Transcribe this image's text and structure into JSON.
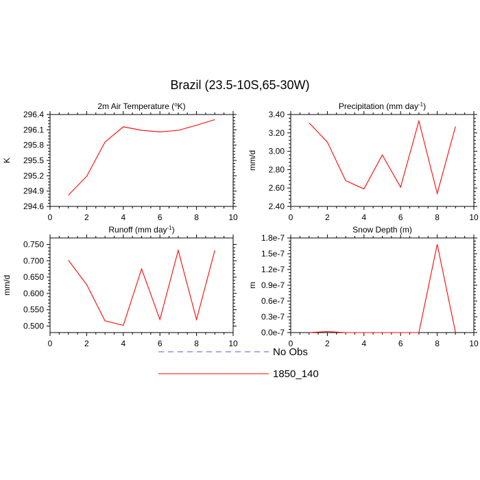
{
  "title": "Brazil (23.5-10S,65-30W)",
  "legend": {
    "entries": [
      {
        "label": "No Obs",
        "color": "#5050ff",
        "dash": true
      },
      {
        "label": "1850_140",
        "color": "#ff0000",
        "dash": false
      }
    ]
  },
  "chart_data": [
    {
      "type": "line",
      "title": "2m Air Temperature (°K)",
      "title_main": "2m Air Temperature (",
      "title_sup": "o",
      "title_tail": "K)",
      "xlabel": "",
      "ylabel": "K",
      "xlim": [
        0,
        10
      ],
      "ylim": [
        294.6,
        296.4
      ],
      "xticks": [
        0,
        2,
        4,
        6,
        8,
        10
      ],
      "yticks": [
        294.6,
        294.9,
        295.2,
        295.5,
        295.8,
        296.1,
        296.4
      ],
      "ytick_labels": [
        "294.6",
        "294.9",
        "295.2",
        "295.5",
        "295.8",
        "296.1",
        "296.4"
      ],
      "grid": false,
      "series": [
        {
          "name": "1850_140",
          "color": "#ff0000",
          "x": [
            1,
            2,
            3,
            4,
            5,
            6,
            7,
            8,
            9
          ],
          "y": [
            294.82,
            295.19,
            295.86,
            296.16,
            296.09,
            296.06,
            296.09,
            296.19,
            296.3
          ]
        }
      ]
    },
    {
      "type": "line",
      "title": "Precipitation (mm day-1)",
      "title_main": "Precipitation (mm day",
      "title_sup": "-1",
      "title_tail": ")",
      "xlabel": "",
      "ylabel": "mm/d",
      "xlim": [
        0,
        10
      ],
      "ylim": [
        2.4,
        3.4
      ],
      "xticks": [
        0,
        2,
        4,
        6,
        8,
        10
      ],
      "yticks": [
        2.4,
        2.6,
        2.8,
        3.0,
        3.2,
        3.4
      ],
      "ytick_labels": [
        "2.40",
        "2.60",
        "2.80",
        "3.00",
        "3.20",
        "3.40"
      ],
      "grid": false,
      "series": [
        {
          "name": "1850_140",
          "color": "#ff0000",
          "x": [
            1,
            2,
            3,
            4,
            5,
            6,
            7,
            8,
            9
          ],
          "y": [
            3.31,
            3.1,
            2.68,
            2.59,
            2.96,
            2.61,
            3.33,
            2.54,
            3.27
          ]
        }
      ]
    },
    {
      "type": "line",
      "title": "Runoff (mm day-1)",
      "title_main": "Runoff (mm day",
      "title_sup": "-1",
      "title_tail": ")",
      "xlabel": "",
      "ylabel": "mm/d",
      "xlim": [
        0,
        10
      ],
      "ylim": [
        0.48,
        0.77
      ],
      "xticks": [
        0,
        2,
        4,
        6,
        8,
        10
      ],
      "yticks": [
        0.5,
        0.55,
        0.6,
        0.65,
        0.7,
        0.75
      ],
      "ytick_labels": [
        "0.500",
        "0.550",
        "0.600",
        "0.650",
        "0.700",
        "0.750"
      ],
      "grid": false,
      "series": [
        {
          "name": "1850_140",
          "color": "#ff0000",
          "x": [
            1,
            2,
            3,
            4,
            5,
            6,
            7,
            8,
            9
          ],
          "y": [
            0.702,
            0.627,
            0.516,
            0.502,
            0.675,
            0.52,
            0.732,
            0.52,
            0.732
          ]
        }
      ]
    },
    {
      "type": "line",
      "title": "Snow Depth (m)",
      "title_main": "Snow Depth (m)",
      "title_sup": "",
      "title_tail": "",
      "xlabel": "",
      "ylabel": "m",
      "xlim": [
        0,
        10
      ],
      "ylim": [
        0,
        1.8e-07
      ],
      "xticks": [
        0,
        2,
        4,
        6,
        8,
        10
      ],
      "yticks": [
        0,
        3e-08,
        6e-08,
        9e-08,
        1.2e-07,
        1.5e-07,
        1.8e-07
      ],
      "ytick_labels": [
        "0.0e-7",
        "0.3e-7",
        "0.6e-7",
        "0.9e-7",
        "1.2e-7",
        "1.5e-7",
        "1.8e-7"
      ],
      "grid": false,
      "series": [
        {
          "name": "1850_140",
          "color": "#ff0000",
          "x": [
            1,
            2,
            3,
            4,
            5,
            6,
            7,
            8,
            9
          ],
          "y": [
            0,
            2e-09,
            0,
            0,
            0,
            0,
            0,
            1.68e-07,
            0
          ]
        }
      ]
    }
  ]
}
